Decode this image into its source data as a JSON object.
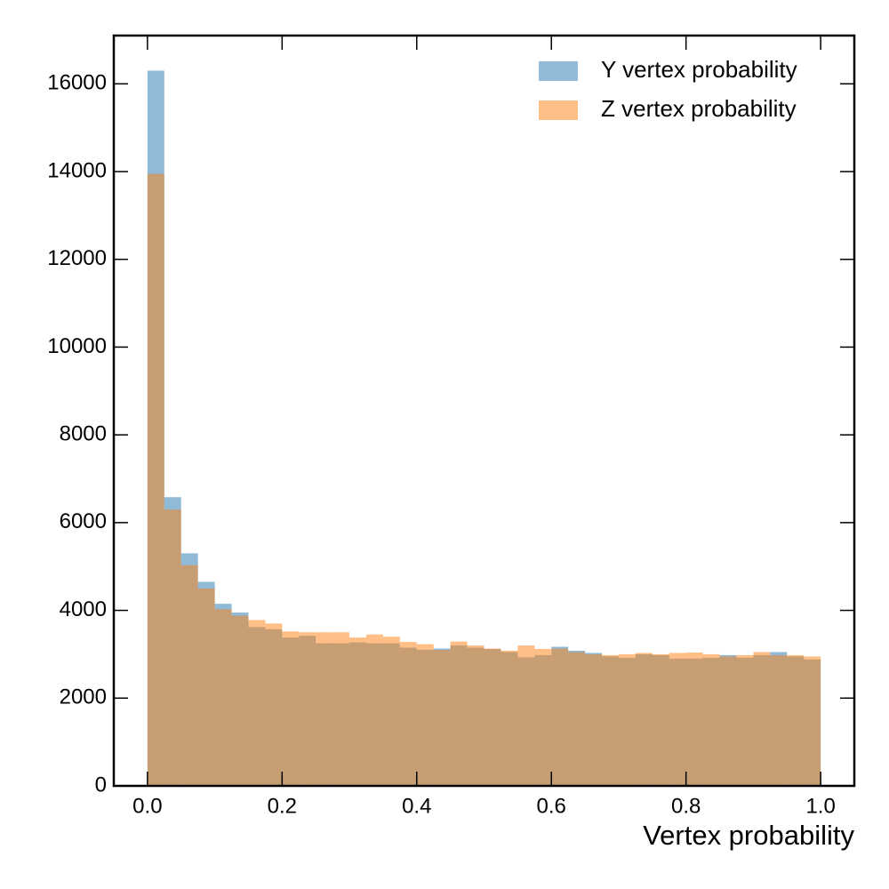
{
  "chart_data": {
    "type": "histogram",
    "xlabel": "Vertex probability",
    "bins": [
      0,
      0.025,
      0.05,
      0.075,
      0.1,
      0.125,
      0.15,
      0.175,
      0.2,
      0.225,
      0.25,
      0.275,
      0.3,
      0.325,
      0.35,
      0.375,
      0.4,
      0.425,
      0.45,
      0.475,
      0.5,
      0.525,
      0.55,
      0.575,
      0.6,
      0.625,
      0.65,
      0.675,
      0.7,
      0.725,
      0.75,
      0.775,
      0.8,
      0.825,
      0.85,
      0.875,
      0.9,
      0.925,
      0.95,
      0.975,
      1.0
    ],
    "series": [
      {
        "name": "Y vertex probability",
        "color": "#1f77b4",
        "alpha": 0.5,
        "values": [
          16300,
          6580,
          5300,
          4650,
          4150,
          3950,
          3620,
          3570,
          3380,
          3420,
          3250,
          3250,
          3270,
          3250,
          3250,
          3150,
          3100,
          3130,
          3200,
          3150,
          3120,
          3050,
          2930,
          2980,
          3170,
          3080,
          3030,
          2950,
          2920,
          3000,
          2980,
          2900,
          2900,
          2920,
          2980,
          2920,
          2980,
          3050,
          2950,
          2880
        ]
      },
      {
        "name": "Z vertex probability",
        "color": "#ff7f0e",
        "alpha": 0.5,
        "values": [
          13950,
          6300,
          5030,
          4500,
          4030,
          3880,
          3780,
          3700,
          3520,
          3500,
          3500,
          3500,
          3380,
          3450,
          3400,
          3280,
          3230,
          3100,
          3290,
          3200,
          3130,
          3080,
          3200,
          3120,
          3130,
          3050,
          3000,
          2980,
          3000,
          3030,
          3000,
          3030,
          3040,
          3000,
          2950,
          2980,
          3050,
          2980,
          2980,
          2950
        ]
      }
    ],
    "xlim": [
      -0.05,
      1.05
    ],
    "ylim": [
      0,
      17100
    ],
    "xticks": [
      {
        "value": 0,
        "label": "0.0"
      },
      0.2,
      0.4,
      0.6,
      0.8,
      {
        "value": 1,
        "label": "1.0"
      }
    ],
    "yticks": [
      0,
      2000,
      4000,
      6000,
      8000,
      10000,
      12000,
      14000,
      16000
    ],
    "legend": "upper right"
  }
}
